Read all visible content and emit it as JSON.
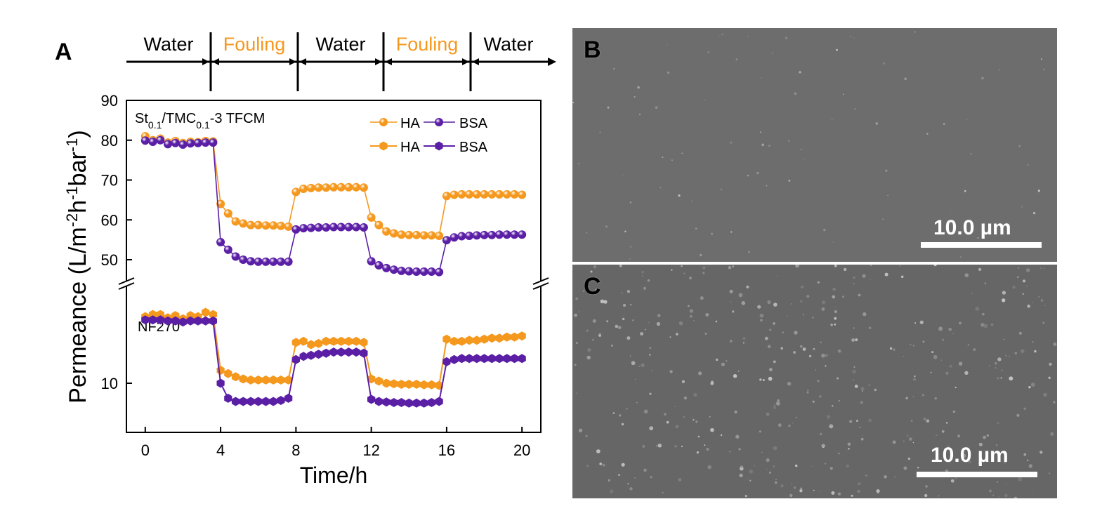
{
  "colors": {
    "ha": "#f5981e",
    "bsa": "#5b1fa6",
    "water": "#000000",
    "fouling": "#f5981e"
  },
  "panels": {
    "a_label": "A",
    "b_label": "B",
    "c_label": "C"
  },
  "phases": [
    {
      "label": "Water",
      "kind": "water"
    },
    {
      "label": "Fouling",
      "kind": "fouling"
    },
    {
      "label": "Water",
      "kind": "water"
    },
    {
      "label": "Fouling",
      "kind": "fouling"
    },
    {
      "label": "Water",
      "kind": "water"
    }
  ],
  "images": {
    "b": {
      "scale_label": "10.0 µm"
    },
    "c": {
      "scale_label": "10.0 µm"
    }
  },
  "chart_data": {
    "type": "line",
    "xlabel": "Time/h",
    "ylabel_parts": [
      "Permeance (L/m",
      "-2",
      "h",
      "-1",
      "bar",
      "-1",
      ")"
    ],
    "xlim": [
      -1,
      21
    ],
    "x_ticks": [
      0,
      4,
      8,
      12,
      16,
      20
    ],
    "axis_break": true,
    "upper_panel": {
      "ylim": [
        45,
        90
      ],
      "y_ticks": [
        50,
        60,
        70,
        80,
        90
      ],
      "annotation": {
        "main": "St",
        "sub1": "0.1",
        "mid": "/TMC",
        "sub2": "0.1",
        "tail": "-3 TFCM"
      }
    },
    "lower_panel": {
      "y_ticks": [
        10
      ],
      "annotation": "NF270"
    },
    "legend": {
      "placement": "top-right",
      "rows": [
        {
          "marker": "sphere",
          "entries": [
            "HA",
            "BSA"
          ]
        },
        {
          "marker": "solid",
          "entries": [
            "HA",
            "BSA"
          ]
        }
      ]
    },
    "x": [
      0,
      0.4,
      0.8,
      1.2,
      1.6,
      2.0,
      2.4,
      2.8,
      3.2,
      3.6,
      4.0,
      4.4,
      4.8,
      5.2,
      5.6,
      6.0,
      6.4,
      6.8,
      7.2,
      7.6,
      8.0,
      8.4,
      8.8,
      9.2,
      9.6,
      10.0,
      10.4,
      10.8,
      11.2,
      11.6,
      12.0,
      12.4,
      12.8,
      13.2,
      13.6,
      14.0,
      14.4,
      14.8,
      15.2,
      15.6,
      16.0,
      16.4,
      16.8,
      17.2,
      17.6,
      18.0,
      18.4,
      18.8,
      19.2,
      19.6,
      20.0
    ],
    "series": [
      {
        "name": "HA",
        "panel": "upper",
        "marker": "sphere",
        "values": [
          81.0,
          80.0,
          80.4,
          79.4,
          79.8,
          79.3,
          79.6,
          79.5,
          79.8,
          79.7,
          64.0,
          61.6,
          59.6,
          59.1,
          58.7,
          58.7,
          58.6,
          58.6,
          58.5,
          58.3,
          67.0,
          67.8,
          68.0,
          68.1,
          68.1,
          68.2,
          68.2,
          68.2,
          68.2,
          68.1,
          60.6,
          58.7,
          57.1,
          56.6,
          56.3,
          56.2,
          56.2,
          56.1,
          56.1,
          56.0,
          66.0,
          66.3,
          66.4,
          66.4,
          66.4,
          66.4,
          66.4,
          66.4,
          66.4,
          66.4,
          66.3
        ]
      },
      {
        "name": "BSA",
        "panel": "upper",
        "marker": "sphere",
        "values": [
          79.9,
          79.6,
          80.0,
          79.0,
          79.3,
          78.9,
          79.2,
          79.3,
          79.4,
          79.4,
          54.4,
          52.5,
          50.8,
          50.0,
          49.6,
          49.5,
          49.5,
          49.5,
          49.5,
          49.5,
          57.6,
          57.9,
          58.0,
          58.1,
          58.1,
          58.2,
          58.2,
          58.2,
          58.2,
          58.1,
          49.6,
          48.6,
          47.9,
          47.5,
          47.2,
          47.1,
          47.0,
          47.0,
          47.0,
          46.9,
          54.9,
          55.6,
          55.9,
          56.0,
          56.1,
          56.2,
          56.2,
          56.3,
          56.3,
          56.3,
          56.3
        ]
      },
      {
        "name": "HA",
        "panel": "lower",
        "marker": "solid",
        "values": [
          16.2,
          16.4,
          16.4,
          16.1,
          16.3,
          16.0,
          16.3,
          16.2,
          16.6,
          16.4,
          11.2,
          10.9,
          10.6,
          10.4,
          10.3,
          10.3,
          10.3,
          10.3,
          10.3,
          10.3,
          13.8,
          13.9,
          13.6,
          13.7,
          13.9,
          13.9,
          13.9,
          13.9,
          13.9,
          13.8,
          10.4,
          10.2,
          10.0,
          9.95,
          9.9,
          9.9,
          9.9,
          9.85,
          9.85,
          9.8,
          14.1,
          13.9,
          13.9,
          14.0,
          14.0,
          14.1,
          14.2,
          14.2,
          14.3,
          14.3,
          14.4
        ]
      },
      {
        "name": "BSA",
        "panel": "lower",
        "marker": "solid",
        "values": [
          15.9,
          15.9,
          15.9,
          15.8,
          15.8,
          15.7,
          15.8,
          15.8,
          15.8,
          15.8,
          10.0,
          8.6,
          8.3,
          8.3,
          8.3,
          8.3,
          8.3,
          8.3,
          8.4,
          8.6,
          12.2,
          12.5,
          12.6,
          12.7,
          12.8,
          12.9,
          12.9,
          12.9,
          12.9,
          12.8,
          8.5,
          8.3,
          8.25,
          8.2,
          8.2,
          8.15,
          8.15,
          8.15,
          8.2,
          8.3,
          12.0,
          12.2,
          12.3,
          12.3,
          12.3,
          12.3,
          12.3,
          12.3,
          12.3,
          12.3,
          12.3
        ]
      }
    ]
  }
}
